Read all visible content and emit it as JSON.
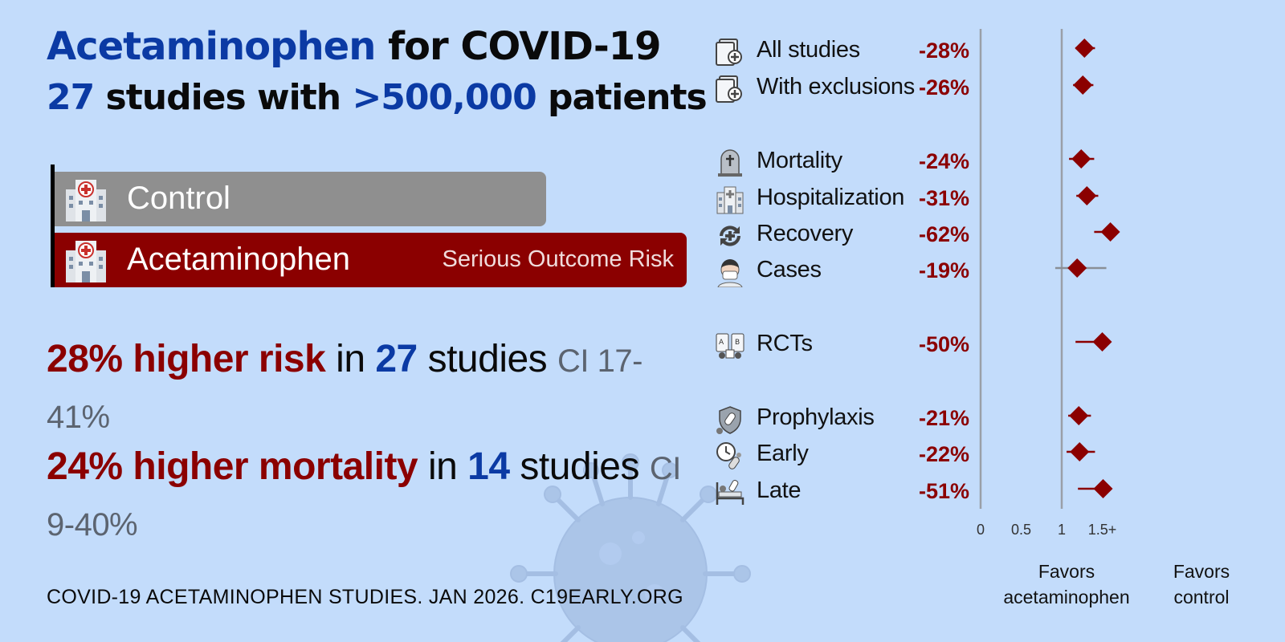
{
  "title": {
    "drug": "Acetaminophen",
    "rest": " for COVID-19",
    "count": "27",
    "studies_with": " studies with ",
    "patients_num": ">500,000",
    "patients_word": " patients"
  },
  "bars": {
    "control_label": "Control",
    "treatment_label": "Acetaminophen",
    "outcome_label": "Serious Outcome Risk",
    "treatment_relative_length": 1.28
  },
  "stats": [
    {
      "effect": "28% higher risk",
      "in": " in ",
      "n": "27",
      "studies": " studies ",
      "ci": "CI 17-41%"
    },
    {
      "effect": "24% higher mortality",
      "in": " in ",
      "n": "14",
      "studies": " studies ",
      "ci": "CI 9-40%"
    }
  ],
  "footer": "COVID-19 ACETAMINOPHEN STUDIES. JAN 2026. C19EARLY.ORG",
  "colors": {
    "accent_red": "#8b0000",
    "accent_blue": "#0b3aa4",
    "background": "#c3dcfb",
    "control_gray": "#8f8f8f"
  },
  "chart_data": {
    "type": "forest",
    "xlim": [
      0,
      1.5
    ],
    "x_ticks": [
      "0",
      "0.5",
      "1",
      "1.5+"
    ],
    "reference_line": 1,
    "xlabel_left": "Favors acetaminophen",
    "xlabel_right": "Favors control",
    "rows": [
      {
        "label": "All studies",
        "icon": "study-document-icon",
        "pct": "-28%",
        "est": 1.28,
        "lo": 1.17,
        "hi": 1.41
      },
      {
        "label": "With exclusions",
        "icon": "study-document-icon",
        "pct": "-26%",
        "est": 1.26,
        "lo": 1.14,
        "hi": 1.39
      },
      {
        "label": "Mortality",
        "icon": "tombstone-icon",
        "pct": "-24%",
        "est": 1.24,
        "lo": 1.09,
        "hi": 1.4
      },
      {
        "label": "Hospitalization",
        "icon": "hospital-building-icon",
        "pct": "-31%",
        "est": 1.31,
        "lo": 1.18,
        "hi": 1.45
      },
      {
        "label": "Recovery",
        "icon": "recovery-cycle-icon",
        "pct": "-62%",
        "est": 1.62,
        "lo": 1.4,
        "hi": 1.62
      },
      {
        "label": "Cases",
        "icon": "masked-person-icon",
        "pct": "-19%",
        "est": 1.19,
        "lo": 0.92,
        "hi": 1.55
      },
      {
        "label": "RCTs",
        "icon": "rct-icon",
        "pct": "-50%",
        "est": 1.5,
        "lo": 1.17,
        "hi": 1.5
      },
      {
        "label": "Prophylaxis",
        "icon": "shield-virus-icon",
        "pct": "-21%",
        "est": 1.21,
        "lo": 1.08,
        "hi": 1.36
      },
      {
        "label": "Early",
        "icon": "clock-pill-icon",
        "pct": "-22%",
        "est": 1.22,
        "lo": 1.06,
        "hi": 1.41
      },
      {
        "label": "Late",
        "icon": "hospital-bed-icon",
        "pct": "-51%",
        "est": 1.51,
        "lo": 1.2,
        "hi": 1.51
      }
    ]
  }
}
